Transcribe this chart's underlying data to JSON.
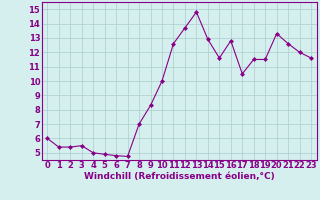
{
  "x": [
    0,
    1,
    2,
    3,
    4,
    5,
    6,
    7,
    8,
    9,
    10,
    11,
    12,
    13,
    14,
    15,
    16,
    17,
    18,
    19,
    20,
    21,
    22,
    23
  ],
  "y": [
    6.0,
    5.4,
    5.4,
    5.5,
    5.0,
    4.9,
    4.8,
    4.75,
    7.0,
    8.3,
    10.0,
    12.6,
    13.7,
    14.8,
    12.9,
    11.6,
    12.8,
    10.5,
    11.5,
    11.5,
    13.3,
    12.6,
    12.0,
    11.6
  ],
  "line_color": "#880088",
  "marker": "D",
  "marker_size": 2.0,
  "bg_color": "#d5eeee",
  "grid_color": "#aacece",
  "xlabel": "Windchill (Refroidissement éolien,°C)",
  "xlabel_color": "#880088",
  "ylim": [
    4.5,
    15.5
  ],
  "xlim": [
    -0.5,
    23.5
  ],
  "yticks": [
    5,
    6,
    7,
    8,
    9,
    10,
    11,
    12,
    13,
    14,
    15
  ],
  "xticks": [
    0,
    1,
    2,
    3,
    4,
    5,
    6,
    7,
    8,
    9,
    10,
    11,
    12,
    13,
    14,
    15,
    16,
    17,
    18,
    19,
    20,
    21,
    22,
    23
  ],
  "tick_color": "#880088",
  "tick_label_size": 6.0,
  "xlabel_size": 6.5,
  "spine_color": "#880088",
  "linewidth": 0.8
}
